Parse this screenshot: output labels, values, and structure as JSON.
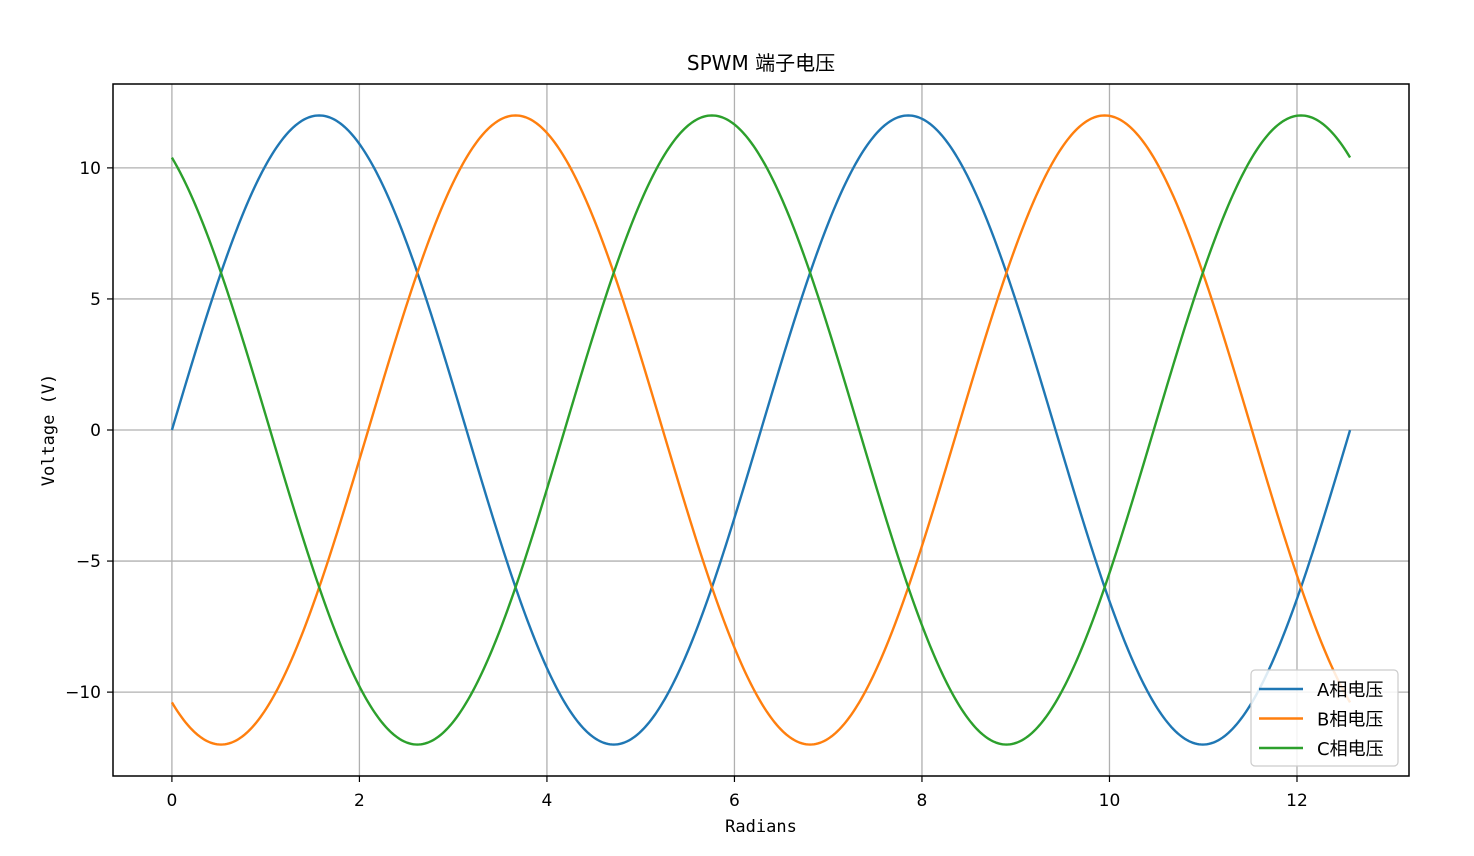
{
  "chart_data": {
    "type": "line",
    "title": "SPWM 端子电压",
    "xlabel": "Radians",
    "ylabel": "Voltage (V)",
    "xlim": [
      -0.6283,
      13.1947
    ],
    "ylim": [
      -13.2,
      13.2
    ],
    "x_ticks": [
      0,
      2,
      4,
      6,
      8,
      10,
      12
    ],
    "y_ticks": [
      -10,
      -5,
      0,
      5,
      10
    ],
    "y_tick_labels": [
      "−10",
      "−5",
      "0",
      "5",
      "10"
    ],
    "grid": true,
    "legend_position": "lower-right",
    "x_range": [
      0,
      12.566
    ],
    "amplitude": 12,
    "series": [
      {
        "name": "A相电压",
        "color": "#1f77b4",
        "phase_deg": 0,
        "formula": "12*sin(x)"
      },
      {
        "name": "B相电压",
        "color": "#ff7f0e",
        "phase_deg": -120,
        "formula": "12*sin(x-2π/3)"
      },
      {
        "name": "C相电压",
        "color": "#2ca02c",
        "phase_deg": 120,
        "formula": "12*sin(x+2π/3)"
      }
    ]
  }
}
